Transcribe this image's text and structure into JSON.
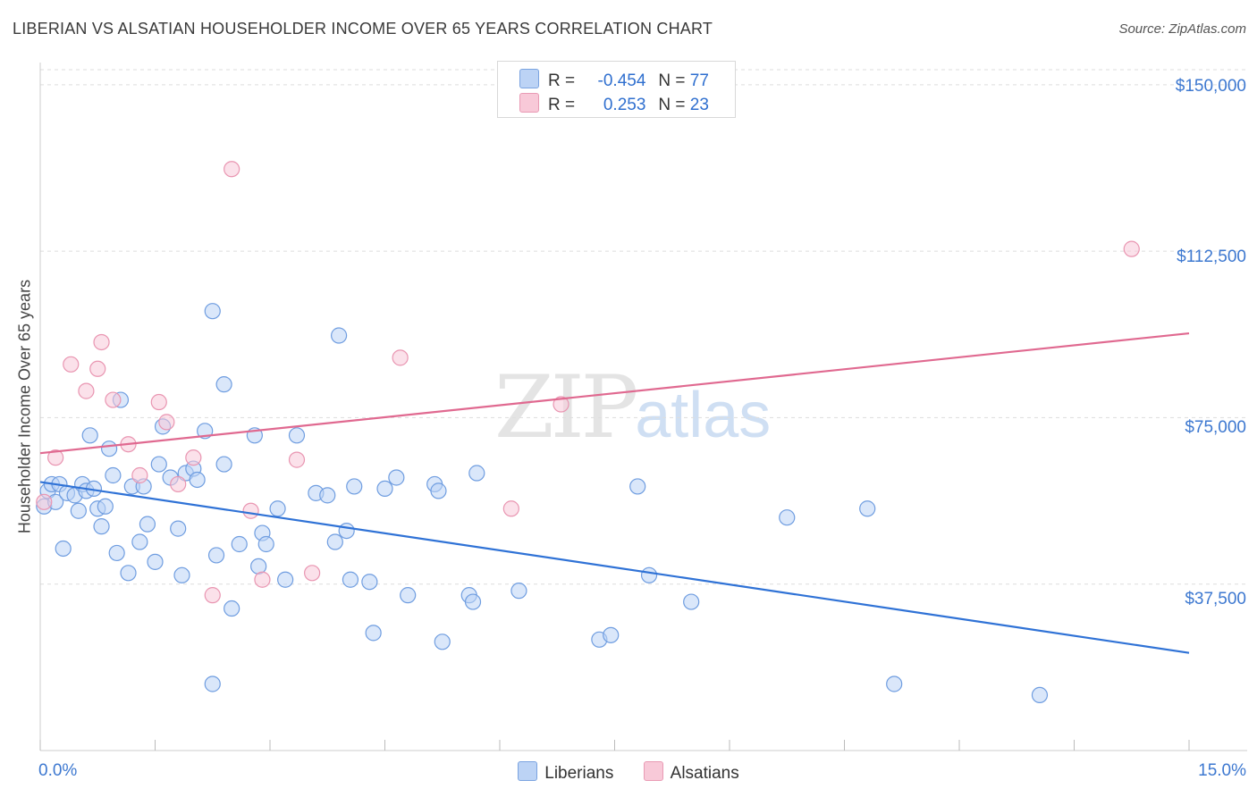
{
  "title": "LIBERIAN VS ALSATIAN HOUSEHOLDER INCOME OVER 65 YEARS CORRELATION CHART",
  "source": "Source: ZipAtlas.com",
  "watermark": {
    "zip": "ZIP",
    "atlas": "atlas"
  },
  "legend_top": [
    {
      "r_label": "R =",
      "r_value": "-0.454",
      "n_label": "N =",
      "n_value": "77"
    },
    {
      "r_label": "R =",
      "r_value": "0.253",
      "n_label": "N =",
      "n_value": "23"
    }
  ],
  "legend_bottom": [
    {
      "label": "Liberians"
    },
    {
      "label": "Alsatians"
    }
  ],
  "colors": {
    "blue_fill": "#bcd3f5",
    "blue_stroke": "#6f9de0",
    "blue_line": "#2f72d6",
    "pink_fill": "#f8c9d8",
    "pink_stroke": "#e995b1",
    "pink_line": "#e06990",
    "grid": "#dddddd",
    "tick_text": "#3d78d0"
  },
  "chart_data": {
    "type": "scatter",
    "title": "LIBERIAN VS ALSATIAN HOUSEHOLDER INCOME OVER 65 YEARS CORRELATION CHART",
    "xlabel": "",
    "ylabel": "Householder Income Over 65 years",
    "xlim": [
      0,
      15
    ],
    "ylim": [
      0,
      155000
    ],
    "x_tick_labels": [
      "0.0%",
      "15.0%"
    ],
    "y_ticks": [
      37500,
      75000,
      112500,
      150000
    ],
    "y_tick_labels": [
      "$37,500",
      "$75,000",
      "$112,500",
      "$150,000"
    ],
    "grid": true,
    "legend_position": "top-center",
    "series": [
      {
        "name": "Liberians",
        "r": -0.454,
        "n": 77,
        "trend": {
          "x": [
            0,
            15
          ],
          "y": [
            60500,
            22000
          ]
        },
        "points": [
          [
            0.05,
            55000
          ],
          [
            0.1,
            58500
          ],
          [
            0.15,
            60000
          ],
          [
            0.2,
            56000
          ],
          [
            0.25,
            60000
          ],
          [
            0.3,
            45500
          ],
          [
            0.35,
            58000
          ],
          [
            0.45,
            57500
          ],
          [
            0.5,
            54000
          ],
          [
            0.55,
            60000
          ],
          [
            0.6,
            58500
          ],
          [
            0.65,
            71000
          ],
          [
            0.7,
            59000
          ],
          [
            0.75,
            54500
          ],
          [
            0.8,
            50500
          ],
          [
            0.85,
            55000
          ],
          [
            0.9,
            68000
          ],
          [
            0.95,
            62000
          ],
          [
            1.0,
            44500
          ],
          [
            1.05,
            79000
          ],
          [
            1.15,
            40000
          ],
          [
            1.2,
            59500
          ],
          [
            1.3,
            47000
          ],
          [
            1.35,
            59500
          ],
          [
            1.4,
            51000
          ],
          [
            1.5,
            42500
          ],
          [
            1.55,
            64500
          ],
          [
            1.6,
            73000
          ],
          [
            1.7,
            61500
          ],
          [
            1.8,
            50000
          ],
          [
            1.85,
            39500
          ],
          [
            1.9,
            62500
          ],
          [
            2.0,
            63500
          ],
          [
            2.05,
            61000
          ],
          [
            2.15,
            72000
          ],
          [
            2.25,
            15000
          ],
          [
            2.3,
            44000
          ],
          [
            2.4,
            64500
          ],
          [
            2.5,
            32000
          ],
          [
            2.25,
            99000
          ],
          [
            2.4,
            82500
          ],
          [
            2.6,
            46500
          ],
          [
            2.8,
            71000
          ],
          [
            2.85,
            41500
          ],
          [
            2.9,
            49000
          ],
          [
            2.95,
            46500
          ],
          [
            3.1,
            54500
          ],
          [
            3.2,
            38500
          ],
          [
            3.35,
            71000
          ],
          [
            3.6,
            58000
          ],
          [
            3.75,
            57500
          ],
          [
            3.85,
            47000
          ],
          [
            3.9,
            93500
          ],
          [
            4.0,
            49500
          ],
          [
            4.05,
            38500
          ],
          [
            4.1,
            59500
          ],
          [
            4.3,
            38000
          ],
          [
            4.35,
            26500
          ],
          [
            4.5,
            59000
          ],
          [
            4.65,
            61500
          ],
          [
            4.8,
            35000
          ],
          [
            5.15,
            60000
          ],
          [
            5.2,
            58500
          ],
          [
            5.25,
            24500
          ],
          [
            5.6,
            35000
          ],
          [
            5.65,
            33500
          ],
          [
            5.7,
            62500
          ],
          [
            6.25,
            36000
          ],
          [
            7.3,
            25000
          ],
          [
            7.45,
            26000
          ],
          [
            7.8,
            59500
          ],
          [
            7.95,
            39500
          ],
          [
            8.5,
            33500
          ],
          [
            9.75,
            52500
          ],
          [
            10.8,
            54500
          ],
          [
            11.15,
            15000
          ],
          [
            13.05,
            12500
          ]
        ]
      },
      {
        "name": "Alsatians",
        "r": 0.253,
        "n": 23,
        "trend": {
          "x": [
            0,
            15
          ],
          "y": [
            67000,
            94000
          ]
        },
        "points": [
          [
            0.05,
            56000
          ],
          [
            0.2,
            66000
          ],
          [
            0.4,
            87000
          ],
          [
            0.6,
            81000
          ],
          [
            0.75,
            86000
          ],
          [
            0.8,
            92000
          ],
          [
            0.95,
            79000
          ],
          [
            1.15,
            69000
          ],
          [
            1.3,
            62000
          ],
          [
            1.55,
            78500
          ],
          [
            1.65,
            74000
          ],
          [
            1.8,
            60000
          ],
          [
            2.0,
            66000
          ],
          [
            2.25,
            35000
          ],
          [
            2.5,
            131000
          ],
          [
            2.75,
            54000
          ],
          [
            2.9,
            38500
          ],
          [
            3.35,
            65500
          ],
          [
            3.55,
            40000
          ],
          [
            4.7,
            88500
          ],
          [
            6.15,
            54500
          ],
          [
            6.8,
            78000
          ],
          [
            14.25,
            113000
          ]
        ]
      }
    ]
  }
}
